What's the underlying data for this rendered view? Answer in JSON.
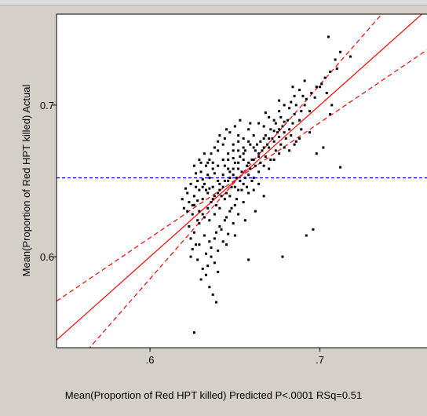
{
  "chart_data": {
    "type": "scatter",
    "title": "",
    "xlabel": "Mean(Proportion of Red HPT killed) Predicted P<.0001 RSq=0.51",
    "ylabel": "Mean(Proportion of Red HPT killed) Actual",
    "xlim": [
      0.545,
      0.763
    ],
    "ylim": [
      0.54,
      0.76
    ],
    "xticks": [
      ".6",
      ".7"
    ],
    "yticks": [
      "0.6",
      "0.7"
    ],
    "xtick_values": [
      0.6,
      0.7
    ],
    "ytick_values": [
      0.6,
      0.7
    ],
    "grid": false,
    "mean_line": 0.652,
    "confidence_band": {
      "slope_lower": 0.76,
      "slope_upper": 1.28,
      "center_x": 0.652,
      "center_y": 0.652
    },
    "colors": {
      "points": "#000000",
      "fit": "#ff0000",
      "mean": "#0000ff",
      "background": "#ffffff",
      "frame": "#d4d0c8"
    },
    "points": [
      [
        0.622,
        0.642
      ],
      [
        0.628,
        0.637
      ],
      [
        0.625,
        0.628
      ],
      [
        0.631,
        0.651
      ],
      [
        0.635,
        0.645
      ],
      [
        0.638,
        0.655
      ],
      [
        0.641,
        0.648
      ],
      [
        0.644,
        0.66
      ],
      [
        0.647,
        0.652
      ],
      [
        0.649,
        0.665
      ],
      [
        0.652,
        0.658
      ],
      [
        0.655,
        0.668
      ],
      [
        0.658,
        0.662
      ],
      [
        0.661,
        0.672
      ],
      [
        0.664,
        0.668
      ],
      [
        0.667,
        0.678
      ],
      [
        0.67,
        0.672
      ],
      [
        0.673,
        0.683
      ],
      [
        0.676,
        0.679
      ],
      [
        0.679,
        0.689
      ],
      [
        0.682,
        0.684
      ],
      [
        0.685,
        0.694
      ],
      [
        0.688,
        0.69
      ],
      [
        0.691,
        0.7
      ],
      [
        0.694,
        0.696
      ],
      [
        0.697,
        0.705
      ],
      [
        0.7,
        0.712
      ],
      [
        0.703,
        0.718
      ],
      [
        0.706,
        0.722
      ],
      [
        0.709,
        0.73
      ],
      [
        0.712,
        0.735
      ],
      [
        0.705,
        0.745
      ],
      [
        0.718,
        0.732
      ],
      [
        0.69,
        0.706
      ],
      [
        0.684,
        0.712
      ],
      [
        0.676,
        0.703
      ],
      [
        0.668,
        0.695
      ],
      [
        0.659,
        0.688
      ],
      [
        0.652,
        0.68
      ],
      [
        0.645,
        0.684
      ],
      [
        0.64,
        0.676
      ],
      [
        0.636,
        0.668
      ],
      [
        0.633,
        0.66
      ],
      [
        0.63,
        0.662
      ],
      [
        0.627,
        0.655
      ],
      [
        0.624,
        0.648
      ],
      [
        0.621,
        0.645
      ],
      [
        0.619,
        0.638
      ],
      [
        0.626,
        0.634
      ],
      [
        0.629,
        0.63
      ],
      [
        0.632,
        0.626
      ],
      [
        0.635,
        0.624
      ],
      [
        0.638,
        0.628
      ],
      [
        0.641,
        0.632
      ],
      [
        0.644,
        0.638
      ],
      [
        0.647,
        0.64
      ],
      [
        0.65,
        0.646
      ],
      [
        0.653,
        0.65
      ],
      [
        0.656,
        0.652
      ],
      [
        0.659,
        0.658
      ],
      [
        0.662,
        0.66
      ],
      [
        0.665,
        0.662
      ],
      [
        0.668,
        0.666
      ],
      [
        0.671,
        0.664
      ],
      [
        0.674,
        0.67
      ],
      [
        0.677,
        0.674
      ],
      [
        0.68,
        0.678
      ],
      [
        0.683,
        0.68
      ],
      [
        0.686,
        0.676
      ],
      [
        0.689,
        0.684
      ],
      [
        0.623,
        0.62
      ],
      [
        0.626,
        0.616
      ],
      [
        0.629,
        0.622
      ],
      [
        0.632,
        0.614
      ],
      [
        0.635,
        0.61
      ],
      [
        0.638,
        0.612
      ],
      [
        0.641,
        0.62
      ],
      [
        0.644,
        0.624
      ],
      [
        0.647,
        0.63
      ],
      [
        0.65,
        0.634
      ],
      [
        0.625,
        0.605
      ],
      [
        0.628,
        0.598
      ],
      [
        0.631,
        0.592
      ],
      [
        0.633,
        0.588
      ],
      [
        0.635,
        0.58
      ],
      [
        0.637,
        0.575
      ],
      [
        0.639,
        0.57
      ],
      [
        0.63,
        0.585
      ],
      [
        0.624,
        0.612
      ],
      [
        0.627,
        0.608
      ],
      [
        0.636,
        0.6
      ],
      [
        0.64,
        0.604
      ],
      [
        0.643,
        0.61
      ],
      [
        0.646,
        0.615
      ],
      [
        0.649,
        0.622
      ],
      [
        0.652,
        0.628
      ],
      [
        0.655,
        0.636
      ],
      [
        0.658,
        0.642
      ],
      [
        0.661,
        0.644
      ],
      [
        0.664,
        0.648
      ],
      [
        0.626,
        0.55
      ],
      [
        0.658,
        0.598
      ],
      [
        0.678,
        0.6
      ],
      [
        0.692,
        0.614
      ],
      [
        0.696,
        0.618
      ],
      [
        0.712,
        0.659
      ],
      [
        0.698,
        0.668
      ],
      [
        0.706,
        0.694
      ],
      [
        0.702,
        0.672
      ],
      [
        0.694,
        0.682
      ],
      [
        0.634,
        0.654
      ],
      [
        0.637,
        0.662
      ],
      [
        0.64,
        0.67
      ],
      [
        0.643,
        0.674
      ],
      [
        0.646,
        0.664
      ],
      [
        0.649,
        0.67
      ],
      [
        0.652,
        0.676
      ],
      [
        0.655,
        0.672
      ],
      [
        0.658,
        0.684
      ],
      [
        0.661,
        0.68
      ],
      [
        0.664,
        0.688
      ],
      [
        0.667,
        0.686
      ],
      [
        0.67,
        0.692
      ],
      [
        0.673,
        0.69
      ],
      [
        0.676,
        0.696
      ],
      [
        0.679,
        0.7
      ],
      [
        0.682,
        0.698
      ],
      [
        0.685,
        0.706
      ],
      [
        0.688,
        0.71
      ],
      [
        0.691,
        0.716
      ],
      [
        0.62,
        0.632
      ],
      [
        0.623,
        0.636
      ],
      [
        0.626,
        0.64
      ],
      [
        0.629,
        0.644
      ],
      [
        0.632,
        0.648
      ],
      [
        0.635,
        0.652
      ],
      [
        0.638,
        0.64
      ],
      [
        0.641,
        0.644
      ],
      [
        0.644,
        0.65
      ],
      [
        0.647,
        0.656
      ],
      [
        0.65,
        0.662
      ],
      [
        0.653,
        0.666
      ],
      [
        0.656,
        0.67
      ],
      [
        0.659,
        0.674
      ],
      [
        0.662,
        0.67
      ],
      [
        0.665,
        0.676
      ],
      [
        0.668,
        0.68
      ],
      [
        0.671,
        0.684
      ],
      [
        0.674,
        0.688
      ],
      [
        0.677,
        0.692
      ],
      [
        0.631,
        0.638
      ],
      [
        0.634,
        0.642
      ],
      [
        0.637,
        0.646
      ],
      [
        0.64,
        0.65
      ],
      [
        0.643,
        0.654
      ],
      [
        0.646,
        0.658
      ],
      [
        0.649,
        0.654
      ],
      [
        0.652,
        0.644
      ],
      [
        0.655,
        0.648
      ],
      [
        0.658,
        0.654
      ],
      [
        0.661,
        0.652
      ],
      [
        0.664,
        0.656
      ],
      [
        0.667,
        0.66
      ],
      [
        0.67,
        0.658
      ],
      [
        0.673,
        0.664
      ],
      [
        0.676,
        0.668
      ],
      [
        0.679,
        0.672
      ],
      [
        0.682,
        0.67
      ],
      [
        0.685,
        0.674
      ],
      [
        0.688,
        0.678
      ],
      [
        0.627,
        0.646
      ],
      [
        0.63,
        0.656
      ],
      [
        0.633,
        0.644
      ],
      [
        0.636,
        0.636
      ],
      [
        0.639,
        0.634
      ],
      [
        0.642,
        0.64
      ],
      [
        0.645,
        0.642
      ],
      [
        0.648,
        0.646
      ],
      [
        0.651,
        0.652
      ],
      [
        0.654,
        0.656
      ],
      [
        0.657,
        0.66
      ],
      [
        0.66,
        0.664
      ],
      [
        0.663,
        0.674
      ],
      [
        0.666,
        0.67
      ],
      [
        0.669,
        0.674
      ],
      [
        0.672,
        0.678
      ],
      [
        0.675,
        0.682
      ],
      [
        0.678,
        0.686
      ],
      [
        0.681,
        0.69
      ],
      [
        0.684,
        0.688
      ],
      [
        0.628,
        0.624
      ],
      [
        0.631,
        0.628
      ],
      [
        0.634,
        0.632
      ],
      [
        0.637,
        0.638
      ],
      [
        0.64,
        0.642
      ],
      [
        0.643,
        0.646
      ],
      [
        0.646,
        0.65
      ],
      [
        0.649,
        0.658
      ],
      [
        0.652,
        0.662
      ],
      [
        0.655,
        0.664
      ],
      [
        0.622,
        0.63
      ],
      [
        0.625,
        0.634
      ],
      [
        0.628,
        0.65
      ],
      [
        0.631,
        0.646
      ],
      [
        0.634,
        0.662
      ],
      [
        0.637,
        0.658
      ],
      [
        0.64,
        0.66
      ],
      [
        0.643,
        0.664
      ],
      [
        0.646,
        0.668
      ],
      [
        0.649,
        0.674
      ],
      [
        0.652,
        0.67
      ],
      [
        0.655,
        0.678
      ],
      [
        0.658,
        0.676
      ],
      [
        0.661,
        0.664
      ],
      [
        0.664,
        0.666
      ],
      [
        0.667,
        0.672
      ],
      [
        0.67,
        0.678
      ],
      [
        0.673,
        0.676
      ],
      [
        0.676,
        0.684
      ],
      [
        0.679,
        0.682
      ],
      [
        0.633,
        0.602
      ],
      [
        0.636,
        0.606
      ],
      [
        0.639,
        0.616
      ],
      [
        0.642,
        0.618
      ],
      [
        0.645,
        0.626
      ],
      [
        0.648,
        0.632
      ],
      [
        0.651,
        0.638
      ],
      [
        0.654,
        0.644
      ],
      [
        0.657,
        0.646
      ],
      [
        0.66,
        0.65
      ],
      [
        0.626,
        0.66
      ],
      [
        0.629,
        0.664
      ],
      [
        0.632,
        0.668
      ],
      [
        0.635,
        0.664
      ],
      [
        0.638,
        0.672
      ],
      [
        0.641,
        0.68
      ],
      [
        0.644,
        0.678
      ],
      [
        0.647,
        0.682
      ],
      [
        0.65,
        0.686
      ],
      [
        0.653,
        0.69
      ],
      [
        0.683,
        0.702
      ],
      [
        0.686,
        0.7
      ],
      [
        0.689,
        0.696
      ],
      [
        0.692,
        0.704
      ],
      [
        0.695,
        0.708
      ],
      [
        0.698,
        0.712
      ],
      [
        0.701,
        0.714
      ],
      [
        0.704,
        0.708
      ],
      [
        0.707,
        0.7
      ],
      [
        0.71,
        0.724
      ],
      [
        0.64,
        0.59
      ],
      [
        0.634,
        0.594
      ],
      [
        0.638,
        0.596
      ],
      [
        0.629,
        0.608
      ],
      [
        0.624,
        0.6
      ],
      [
        0.645,
        0.608
      ],
      [
        0.65,
        0.614
      ],
      [
        0.656,
        0.624
      ],
      [
        0.662,
        0.63
      ],
      [
        0.667,
        0.64
      ]
    ]
  }
}
